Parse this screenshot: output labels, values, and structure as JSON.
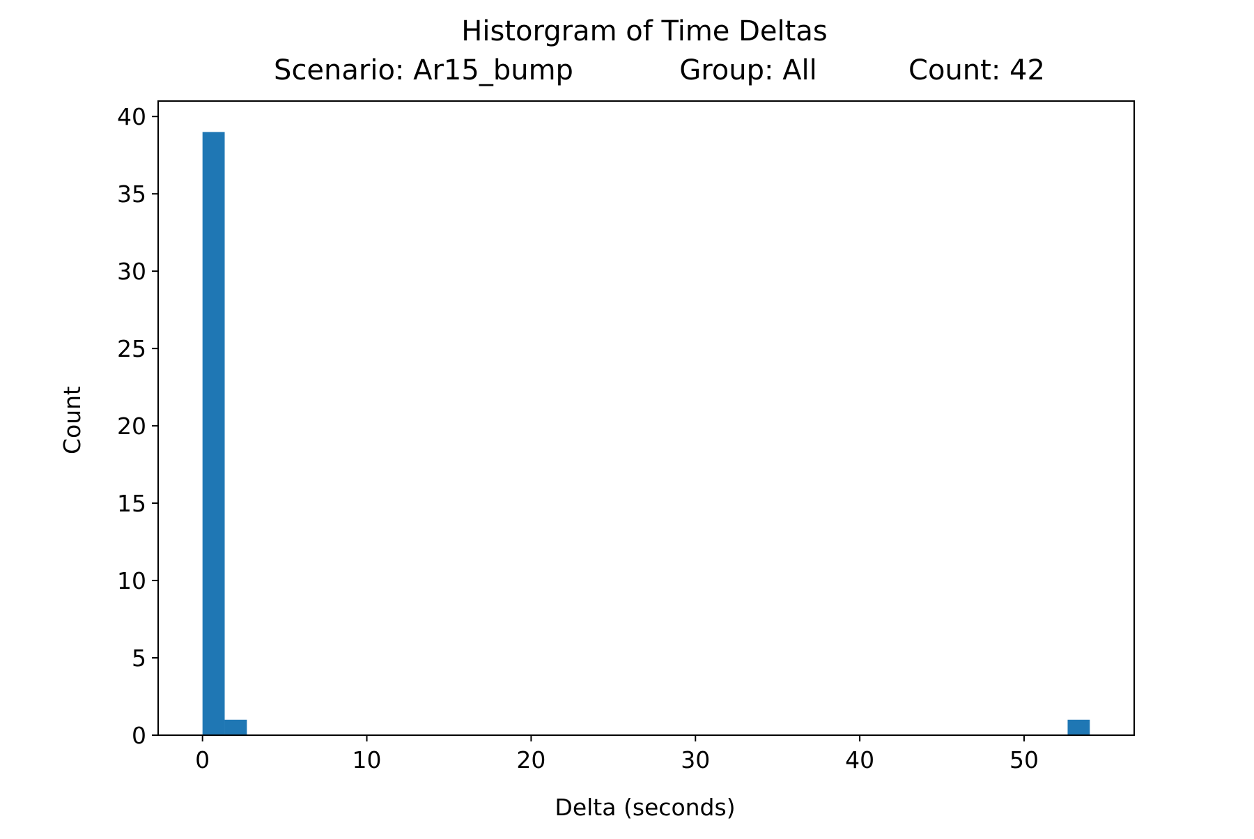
{
  "chart_data": {
    "type": "bar",
    "title": "Historgram of Time Deltas",
    "subtitle": {
      "scenario": "Scenario: Ar15_bump",
      "group": "Group: All",
      "count": "Count: 42"
    },
    "xlabel": "Delta (seconds)",
    "ylabel": "Count",
    "xlim": [
      -2.7,
      56.7
    ],
    "ylim": [
      0,
      41
    ],
    "xticks": [
      0,
      10,
      20,
      30,
      40,
      50
    ],
    "yticks": [
      0,
      5,
      10,
      15,
      20,
      25,
      30,
      35,
      40
    ],
    "bins": [
      {
        "x0": 0.0,
        "x1": 1.35,
        "count": 39
      },
      {
        "x0": 1.35,
        "x1": 2.7,
        "count": 1
      },
      {
        "x0": 52.65,
        "x1": 54.0,
        "count": 1
      }
    ],
    "bar_color": "#1f77b4",
    "grid": false,
    "legend": "none"
  }
}
